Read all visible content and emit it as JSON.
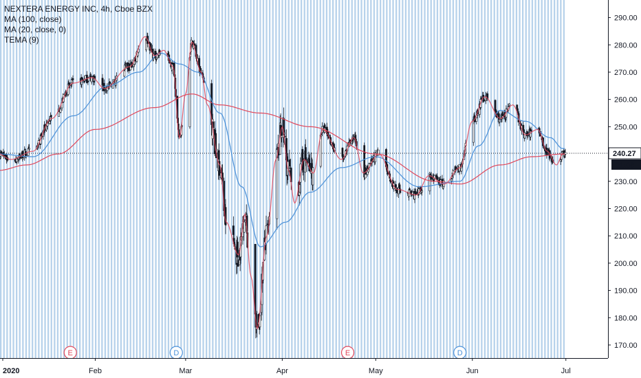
{
  "legend": {
    "title": "NEXTERA ENERGY INC, 4h, Cboe BZX",
    "ma100": "MA (100, close)",
    "ma20": "MA (20, close, 0)",
    "tema": "TEMA (9)"
  },
  "price_tag": "240.27",
  "time_tag": "21:06",
  "colors": {
    "up": "#26a69a",
    "down": "#131722",
    "ma100": "#e0475b",
    "ma20": "#4a90d9",
    "tema": "#e0475b",
    "stripe": "#9fc3e4",
    "tag_bg": "#131722"
  },
  "chart_data": {
    "type": "candlestick",
    "title": "NEXTERA ENERGY INC, 4h, Cboe BZX",
    "x_axis": {
      "labels": [
        "2020",
        "Feb",
        "Mar",
        "Apr",
        "May",
        "Jun",
        "Jul"
      ]
    },
    "y_axis": {
      "range": [
        165,
        295
      ],
      "ticks": [
        "170.00",
        "180.00",
        "190.00",
        "200.00",
        "210.00",
        "220.00",
        "230.00",
        "240.00",
        "250.00",
        "260.00",
        "270.00",
        "280.00",
        "290.00"
      ]
    },
    "last_price": 240.27,
    "events": [
      {
        "label": "E",
        "date": "Jan 24",
        "color": "#e0475b"
      },
      {
        "label": "D",
        "date": "Feb 27",
        "color": "#4a90d9"
      },
      {
        "label": "E",
        "date": "Apr 22",
        "color": "#e0475b"
      },
      {
        "label": "D",
        "date": "May 28",
        "color": "#4a90d9"
      }
    ],
    "anchors": [
      [
        "2020-01-01",
        240
      ],
      [
        "2020-01-05",
        238
      ],
      [
        "2020-01-12",
        241
      ],
      [
        "2020-01-18",
        253
      ],
      [
        "2020-01-25",
        266
      ],
      [
        "2020-01-31",
        268
      ],
      [
        "2020-02-04",
        264
      ],
      [
        "2020-02-12",
        272
      ],
      [
        "2020-02-17",
        283
      ],
      [
        "2020-02-20",
        276
      ],
      [
        "2020-02-23",
        278
      ],
      [
        "2020-02-26",
        272
      ],
      [
        "2020-02-28",
        246
      ],
      [
        "2020-03-01",
        262
      ],
      [
        "2020-03-03",
        281
      ],
      [
        "2020-03-06",
        270
      ],
      [
        "2020-03-08",
        258
      ],
      [
        "2020-03-12",
        236
      ],
      [
        "2020-03-14",
        215
      ],
      [
        "2020-03-18",
        203
      ],
      [
        "2020-03-20",
        218
      ],
      [
        "2020-03-22",
        195
      ],
      [
        "2020-03-24",
        176
      ],
      [
        "2020-03-27",
        210
      ],
      [
        "2020-03-30",
        238
      ],
      [
        "2020-04-01",
        250
      ],
      [
        "2020-04-03",
        234
      ],
      [
        "2020-04-05",
        222
      ],
      [
        "2020-04-08",
        238
      ],
      [
        "2020-04-11",
        233
      ],
      [
        "2020-04-14",
        249
      ],
      [
        "2020-04-20",
        238
      ],
      [
        "2020-04-24",
        246
      ],
      [
        "2020-04-27",
        233
      ],
      [
        "2020-05-02",
        240
      ],
      [
        "2020-05-08",
        227
      ],
      [
        "2020-05-14",
        225
      ],
      [
        "2020-05-18",
        232
      ],
      [
        "2020-05-23",
        229
      ],
      [
        "2020-05-28",
        235
      ],
      [
        "2020-06-01",
        252
      ],
      [
        "2020-06-05",
        261
      ],
      [
        "2020-06-10",
        253
      ],
      [
        "2020-06-14",
        258
      ],
      [
        "2020-06-18",
        247
      ],
      [
        "2020-06-22",
        249
      ],
      [
        "2020-06-25",
        241
      ],
      [
        "2020-06-28",
        236
      ],
      [
        "2020-06-30",
        240
      ]
    ],
    "ma100_anchors": [
      [
        "2020-01-01",
        234
      ],
      [
        "2020-01-10",
        236
      ],
      [
        "2020-01-20",
        240
      ],
      [
        "2020-02-01",
        249
      ],
      [
        "2020-02-20",
        257
      ],
      [
        "2020-03-03",
        262
      ],
      [
        "2020-03-12",
        258
      ],
      [
        "2020-03-25",
        255
      ],
      [
        "2020-04-10",
        250
      ],
      [
        "2020-05-01",
        240
      ],
      [
        "2020-05-20",
        230
      ],
      [
        "2020-05-28",
        229
      ],
      [
        "2020-06-10",
        236
      ],
      [
        "2020-06-20",
        239
      ],
      [
        "2020-06-30",
        240
      ]
    ],
    "ma20_anchors": [
      [
        "2020-01-01",
        240
      ],
      [
        "2020-01-12",
        239
      ],
      [
        "2020-01-25",
        254
      ],
      [
        "2020-02-05",
        265
      ],
      [
        "2020-02-15",
        270
      ],
      [
        "2020-02-22",
        277
      ],
      [
        "2020-02-28",
        273
      ],
      [
        "2020-03-05",
        270
      ],
      [
        "2020-03-12",
        255
      ],
      [
        "2020-03-19",
        228
      ],
      [
        "2020-03-25",
        206
      ],
      [
        "2020-04-02",
        215
      ],
      [
        "2020-04-10",
        226
      ],
      [
        "2020-04-20",
        235
      ],
      [
        "2020-05-01",
        239
      ],
      [
        "2020-05-15",
        228
      ],
      [
        "2020-05-28",
        230
      ],
      [
        "2020-06-03",
        243
      ],
      [
        "2020-06-10",
        256
      ],
      [
        "2020-06-18",
        252
      ],
      [
        "2020-06-26",
        246
      ],
      [
        "2020-06-30",
        242
      ]
    ]
  }
}
